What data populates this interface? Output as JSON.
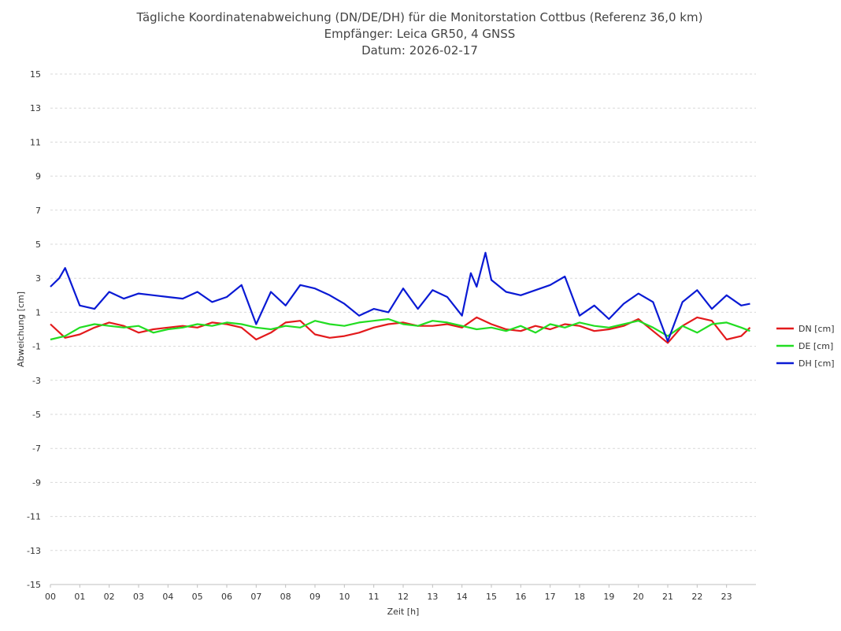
{
  "chart_data": {
    "type": "line",
    "title": [
      "Tägliche Koordinatenabweichung (DN/DE/DH) für die Monitorstation Cottbus (Referenz 36,0 km)",
      "Empfänger: Leica GR50, 4 GNSS",
      "Datum: 2026-02-17"
    ],
    "xlabel": "Zeit [h]",
    "ylabel": "Abweichung [cm]",
    "xlim": [
      0,
      24
    ],
    "ylim": [
      -15,
      15
    ],
    "y_ticks": [
      "15",
      "13",
      "11",
      "9",
      "7",
      "5",
      "3",
      "1",
      "-1",
      "-3",
      "-5",
      "-7",
      "-9",
      "-11",
      "-13",
      "-15"
    ],
    "x_ticks": [
      "00",
      "01",
      "02",
      "03",
      "04",
      "05",
      "06",
      "07",
      "08",
      "09",
      "10",
      "11",
      "12",
      "13",
      "14",
      "15",
      "16",
      "17",
      "18",
      "19",
      "20",
      "21",
      "22",
      "23"
    ],
    "grid": true,
    "legend_position": "right",
    "series": [
      {
        "name": "DN [cm]",
        "color": "#e31a1c",
        "x": [
          0,
          0.5,
          1,
          1.5,
          2,
          2.5,
          3,
          3.5,
          4,
          4.5,
          5,
          5.5,
          6,
          6.5,
          7,
          7.5,
          8,
          8.5,
          9,
          9.5,
          10,
          10.5,
          11,
          11.5,
          12,
          12.5,
          13,
          13.5,
          14,
          14.5,
          15,
          15.5,
          16,
          16.5,
          17,
          17.5,
          18,
          18.5,
          19,
          19.5,
          20,
          20.5,
          21,
          21.5,
          22,
          22.5,
          23,
          23.5,
          23.8
        ],
        "values": [
          0.3,
          -0.5,
          -0.3,
          0.1,
          0.4,
          0.2,
          -0.2,
          0,
          0.1,
          0.2,
          0.1,
          0.4,
          0.3,
          0.1,
          -0.6,
          -0.2,
          0.4,
          0.5,
          -0.3,
          -0.5,
          -0.4,
          -0.2,
          0.1,
          0.3,
          0.4,
          0.2,
          0.2,
          0.3,
          0.1,
          0.7,
          0.3,
          0,
          -0.1,
          0.2,
          0,
          0.3,
          0.2,
          -0.1,
          0,
          0.2,
          0.6,
          -0.1,
          -0.8,
          0.2,
          0.7,
          0.5,
          -0.6,
          -0.4,
          0.1
        ]
      },
      {
        "name": "DE [cm]",
        "color": "#22dd22",
        "x": [
          0,
          0.5,
          1,
          1.5,
          2,
          2.5,
          3,
          3.5,
          4,
          4.5,
          5,
          5.5,
          6,
          6.5,
          7,
          7.5,
          8,
          8.5,
          9,
          9.5,
          10,
          10.5,
          11,
          11.5,
          12,
          12.5,
          13,
          13.5,
          14,
          14.5,
          15,
          15.5,
          16,
          16.5,
          17,
          17.5,
          18,
          18.5,
          19,
          19.5,
          20,
          20.5,
          21,
          21.5,
          22,
          22.5,
          23,
          23.5,
          23.8
        ],
        "values": [
          -0.6,
          -0.4,
          0.1,
          0.3,
          0.2,
          0.1,
          0.2,
          -0.2,
          0,
          0.1,
          0.3,
          0.2,
          0.4,
          0.3,
          0.1,
          0,
          0.2,
          0.1,
          0.5,
          0.3,
          0.2,
          0.4,
          0.5,
          0.6,
          0.3,
          0.2,
          0.5,
          0.4,
          0.2,
          0,
          0.1,
          -0.1,
          0.2,
          -0.2,
          0.3,
          0.1,
          0.4,
          0.2,
          0.1,
          0.3,
          0.5,
          0.1,
          -0.4,
          0.2,
          -0.2,
          0.3,
          0.4,
          0.1,
          -0.1
        ]
      },
      {
        "name": "DH [cm]",
        "color": "#0a1ad4",
        "x": [
          0,
          0.3,
          0.5,
          1,
          1.5,
          2,
          2.5,
          3,
          3.5,
          4,
          4.5,
          5,
          5.5,
          6,
          6.5,
          7,
          7.5,
          8,
          8.5,
          9,
          9.5,
          10,
          10.5,
          11,
          11.5,
          12,
          12.5,
          13,
          13.5,
          14,
          14.3,
          14.5,
          14.8,
          15,
          15.5,
          16,
          16.5,
          17,
          17.5,
          18,
          18.5,
          19,
          19.5,
          20,
          20.5,
          21,
          21.5,
          22,
          22.5,
          23,
          23.5,
          23.8
        ],
        "values": [
          2.5,
          3,
          3.6,
          1.4,
          1.2,
          2.2,
          1.8,
          2.1,
          2,
          1.9,
          1.8,
          2.2,
          1.6,
          1.9,
          2.6,
          0.3,
          2.2,
          1.4,
          2.6,
          2.4,
          2,
          1.5,
          0.8,
          1.2,
          1,
          2.4,
          1.2,
          2.3,
          1.9,
          0.8,
          3.3,
          2.5,
          4.5,
          2.9,
          2.2,
          2,
          2.3,
          2.6,
          3.1,
          0.8,
          1.4,
          0.6,
          1.5,
          2.1,
          1.6,
          -0.7,
          1.6,
          2.3,
          1.2,
          2,
          1.4,
          1.5
        ]
      }
    ]
  }
}
